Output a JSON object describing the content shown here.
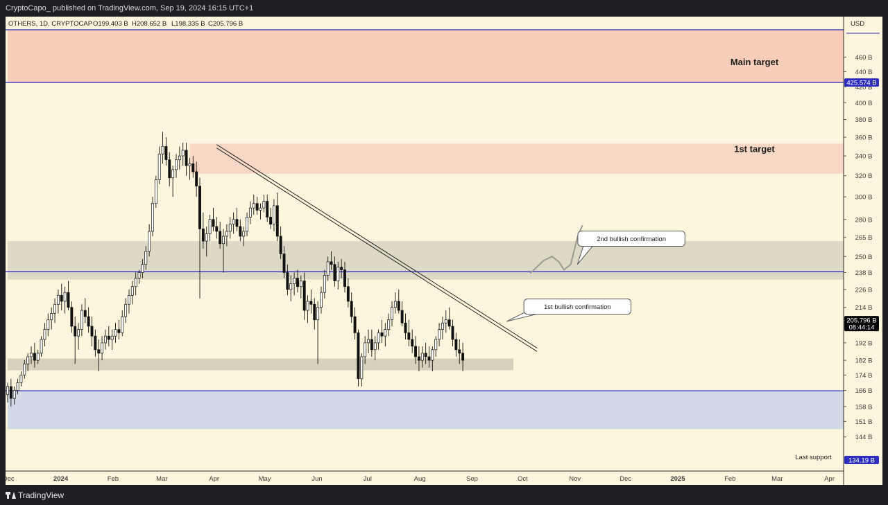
{
  "header": {
    "published": "CryptoCapo_ published on TradingView.com, Sep 19, 2024 16:15 UTC+1"
  },
  "footer": {
    "brand": "TradingView"
  },
  "chart_data": {
    "type": "candlestick",
    "symbol_line": "OTHERS, 1D, CRYPTOCAP",
    "ohlc": {
      "open": "O199.403 B",
      "high": "H208.652 B",
      "low": "L198.335 B",
      "close": "C205.796 B"
    },
    "currency": "USD",
    "scale": "log",
    "ylim": [
      130,
      500
    ],
    "price_ticks": [
      {
        "v": 460,
        "label": "460 B"
      },
      {
        "v": 440,
        "label": "440 B"
      },
      {
        "v": 420,
        "label": "420 B"
      },
      {
        "v": 400,
        "label": "400 B"
      },
      {
        "v": 380,
        "label": "380 B"
      },
      {
        "v": 360,
        "label": "360 B"
      },
      {
        "v": 340,
        "label": "340 B"
      },
      {
        "v": 320,
        "label": "320 B"
      },
      {
        "v": 300,
        "label": "300 B"
      },
      {
        "v": 280,
        "label": "280 B"
      },
      {
        "v": 265,
        "label": "265 B"
      },
      {
        "v": 250,
        "label": "250 B"
      },
      {
        "v": 238,
        "label": "238 B"
      },
      {
        "v": 226,
        "label": "226 B"
      },
      {
        "v": 214,
        "label": "214 B"
      },
      {
        "v": 192,
        "label": "192 B"
      },
      {
        "v": 182,
        "label": "182 B"
      },
      {
        "v": 174,
        "label": "174 B"
      },
      {
        "v": 166,
        "label": "166 B"
      },
      {
        "v": 158,
        "label": "158 B"
      },
      {
        "v": 151,
        "label": "151 B"
      },
      {
        "v": 144,
        "label": "144 B"
      }
    ],
    "badges": [
      {
        "v": 425.574,
        "label": "425.574 B",
        "bg": "#2d2dbf",
        "fg": "#ffffff"
      },
      {
        "v": 205.796,
        "label": "205.796 B",
        "sub": "08:44:14",
        "bg": "#000000",
        "fg": "#ffffff"
      },
      {
        "v": 134.19,
        "label": "134.19 B",
        "bg": "#2d2dbf",
        "fg": "#ffffff"
      }
    ],
    "time_labels": [
      {
        "t": 0.5,
        "label": "Dec"
      },
      {
        "t": 31.5,
        "label": "2024"
      },
      {
        "t": 62.5,
        "label": "Feb"
      },
      {
        "t": 91.5,
        "label": "Mar"
      },
      {
        "t": 122.5,
        "label": "Apr"
      },
      {
        "t": 152.5,
        "label": "May"
      },
      {
        "t": 183.5,
        "label": "Jun"
      },
      {
        "t": 213.5,
        "label": "Jul"
      },
      {
        "t": 244.5,
        "label": "Aug"
      },
      {
        "t": 275.5,
        "label": "Sep"
      },
      {
        "t": 305.5,
        "label": "Oct"
      },
      {
        "t": 336.5,
        "label": "Nov"
      },
      {
        "t": 366.5,
        "label": "Dec"
      },
      {
        "t": 397.5,
        "label": "2025"
      },
      {
        "t": 428.5,
        "label": "Feb"
      },
      {
        "t": 456.5,
        "label": "Mar"
      },
      {
        "t": 487.5,
        "label": "Apr"
      }
    ],
    "zones": [
      {
        "name": "main-target-zone",
        "t0": 0,
        "t1": 497,
        "p0": 425.574,
        "p1": 500,
        "color": "#f8cdb9"
      },
      {
        "name": "first-target-zone",
        "t0": 108,
        "t1": 497,
        "p0": 322,
        "p1": 353,
        "color": "#f8d7c4"
      },
      {
        "name": "bullish-confirmation-zone",
        "t0": 0,
        "t1": 497,
        "p0": 233,
        "p1": 262,
        "color": "#ddd9c6"
      },
      {
        "name": "support-zone",
        "t0": 0,
        "t1": 300,
        "p0": 176.5,
        "p1": 183,
        "color": "#d6d0bc"
      },
      {
        "name": "last-support-zone",
        "t0": 0,
        "t1": 497,
        "p0": 147.5,
        "p1": 165.5,
        "color": "#d2d9e6"
      }
    ],
    "levels": [
      {
        "p": 425.574,
        "color": "#2d2dbf"
      },
      {
        "p": 238.6,
        "color": "#2d2dbf"
      },
      {
        "p": 165.8,
        "color": "#2d2dbf"
      },
      {
        "p": 500,
        "color": "#2d2dbf"
      }
    ],
    "trendline": {
      "t0": 124,
      "p0": 352,
      "t1": 314,
      "p1": 189
    },
    "annotations": [
      {
        "text": "Main target",
        "t": 443,
        "p": 449
      },
      {
        "text": "1st target",
        "t": 443,
        "p": 344
      },
      {
        "text": "Last support",
        "t": 478,
        "p": 134.5
      }
    ],
    "callouts": [
      {
        "text": "2nd bullish confirmation",
        "t": 370,
        "p": 264,
        "tail_t": 338,
        "tail_p": 244
      },
      {
        "text": "1st bullish confirmation",
        "t": 338,
        "p": 214.5,
        "tail_t": 296,
        "tail_p": 205
      }
    ],
    "projection": [
      [
        310,
        237.4
      ],
      [
        318,
        247
      ],
      [
        323,
        250
      ],
      [
        327,
        246
      ],
      [
        330,
        240
      ],
      [
        334,
        244
      ],
      [
        338,
        265
      ],
      [
        341,
        275
      ]
    ],
    "candles": [
      [
        0,
        164,
        170,
        160,
        168
      ],
      [
        2,
        168,
        172,
        158,
        162
      ],
      [
        4,
        162,
        168,
        159,
        166
      ],
      [
        6,
        166,
        172,
        164,
        170
      ],
      [
        8,
        170,
        176,
        168,
        174
      ],
      [
        10,
        174,
        182,
        172,
        180
      ],
      [
        12,
        180,
        186,
        176,
        184
      ],
      [
        14,
        184,
        190,
        180,
        186
      ],
      [
        16,
        186,
        192,
        178,
        182
      ],
      [
        18,
        182,
        188,
        180,
        186
      ],
      [
        20,
        186,
        196,
        184,
        194
      ],
      [
        22,
        194,
        204,
        190,
        200
      ],
      [
        24,
        200,
        210,
        196,
        206
      ],
      [
        26,
        206,
        214,
        200,
        210
      ],
      [
        28,
        210,
        220,
        204,
        216
      ],
      [
        30,
        216,
        226,
        210,
        222
      ],
      [
        32,
        222,
        230,
        212,
        218
      ],
      [
        34,
        218,
        228,
        210,
        224
      ],
      [
        36,
        224,
        232,
        212,
        214
      ],
      [
        38,
        214,
        218,
        198,
        202
      ],
      [
        40,
        202,
        208,
        180,
        196
      ],
      [
        42,
        196,
        204,
        188,
        200
      ],
      [
        44,
        200,
        216,
        196,
        212
      ],
      [
        46,
        212,
        220,
        204,
        208
      ],
      [
        48,
        208,
        214,
        198,
        202
      ],
      [
        50,
        202,
        208,
        190,
        196
      ],
      [
        52,
        196,
        200,
        184,
        188
      ],
      [
        54,
        188,
        194,
        176,
        186
      ],
      [
        56,
        186,
        196,
        182,
        192
      ],
      [
        58,
        192,
        200,
        188,
        196
      ],
      [
        60,
        196,
        202,
        190,
        194
      ],
      [
        62,
        194,
        200,
        188,
        196
      ],
      [
        64,
        196,
        204,
        192,
        200
      ],
      [
        66,
        200,
        206,
        194,
        198
      ],
      [
        68,
        198,
        212,
        196,
        208
      ],
      [
        70,
        208,
        220,
        204,
        216
      ],
      [
        72,
        216,
        226,
        210,
        222
      ],
      [
        74,
        222,
        232,
        216,
        228
      ],
      [
        76,
        228,
        238,
        222,
        234
      ],
      [
        78,
        234,
        240,
        230,
        238
      ],
      [
        80,
        238,
        248,
        234,
        244
      ],
      [
        82,
        244,
        258,
        240,
        254
      ],
      [
        84,
        254,
        276,
        250,
        270
      ],
      [
        86,
        270,
        300,
        266,
        294
      ],
      [
        88,
        294,
        320,
        290,
        316
      ],
      [
        90,
        316,
        350,
        312,
        342
      ],
      [
        92,
        342,
        366,
        332,
        350
      ],
      [
        94,
        350,
        360,
        330,
        336
      ],
      [
        96,
        336,
        344,
        310,
        318
      ],
      [
        98,
        318,
        330,
        300,
        326
      ],
      [
        100,
        326,
        342,
        318,
        336
      ],
      [
        102,
        336,
        350,
        326,
        340
      ],
      [
        104,
        340,
        354,
        330,
        346
      ],
      [
        106,
        346,
        354,
        320,
        330
      ],
      [
        108,
        330,
        338,
        316,
        332
      ],
      [
        110,
        332,
        340,
        318,
        324
      ],
      [
        112,
        324,
        334,
        300,
        310
      ],
      [
        114,
        310,
        318,
        220,
        272
      ],
      [
        116,
        272,
        286,
        256,
        262
      ],
      [
        118,
        262,
        274,
        250,
        268
      ],
      [
        120,
        268,
        284,
        262,
        280
      ],
      [
        122,
        280,
        290,
        270,
        274
      ],
      [
        124,
        274,
        282,
        264,
        270
      ],
      [
        126,
        270,
        278,
        256,
        260
      ],
      [
        128,
        260,
        272,
        238,
        266
      ],
      [
        130,
        266,
        276,
        258,
        270
      ],
      [
        132,
        270,
        282,
        264,
        276
      ],
      [
        134,
        276,
        286,
        268,
        280
      ],
      [
        136,
        280,
        290,
        270,
        274
      ],
      [
        138,
        274,
        280,
        262,
        266
      ],
      [
        140,
        266,
        274,
        258,
        270
      ],
      [
        142,
        270,
        286,
        266,
        282
      ],
      [
        144,
        282,
        296,
        276,
        290
      ],
      [
        146,
        290,
        302,
        284,
        294
      ],
      [
        148,
        294,
        300,
        284,
        288
      ],
      [
        150,
        288,
        294,
        280,
        290
      ],
      [
        152,
        290,
        302,
        286,
        296
      ],
      [
        154,
        296,
        302,
        278,
        282
      ],
      [
        156,
        282,
        290,
        272,
        276
      ],
      [
        158,
        276,
        298,
        270,
        292
      ],
      [
        160,
        292,
        304,
        262,
        266
      ],
      [
        162,
        266,
        274,
        248,
        252
      ],
      [
        164,
        252,
        258,
        234,
        238
      ],
      [
        166,
        238,
        244,
        222,
        226
      ],
      [
        168,
        226,
        236,
        218,
        230
      ],
      [
        170,
        230,
        238,
        222,
        234
      ],
      [
        172,
        234,
        240,
        224,
        228
      ],
      [
        174,
        228,
        236,
        220,
        232
      ],
      [
        176,
        232,
        238,
        206,
        212
      ],
      [
        178,
        212,
        222,
        204,
        218
      ],
      [
        180,
        218,
        226,
        210,
        216
      ],
      [
        182,
        216,
        220,
        200,
        206
      ],
      [
        184,
        206,
        218,
        180,
        214
      ],
      [
        186,
        214,
        228,
        210,
        224
      ],
      [
        188,
        224,
        240,
        220,
        236
      ],
      [
        190,
        236,
        250,
        232,
        246
      ],
      [
        192,
        246,
        254,
        240,
        244
      ],
      [
        194,
        244,
        250,
        228,
        232
      ],
      [
        196,
        232,
        246,
        226,
        242
      ],
      [
        198,
        242,
        248,
        234,
        240
      ],
      [
        200,
        240,
        246,
        224,
        228
      ],
      [
        202,
        228,
        234,
        214,
        218
      ],
      [
        204,
        218,
        224,
        204,
        208
      ],
      [
        206,
        208,
        214,
        194,
        198
      ],
      [
        208,
        198,
        200,
        168,
        172
      ],
      [
        210,
        172,
        186,
        168,
        184
      ],
      [
        212,
        184,
        196,
        180,
        192
      ],
      [
        214,
        192,
        200,
        186,
        194
      ],
      [
        216,
        194,
        200,
        184,
        188
      ],
      [
        218,
        188,
        196,
        182,
        192
      ],
      [
        220,
        192,
        200,
        188,
        198
      ],
      [
        222,
        198,
        206,
        192,
        196
      ],
      [
        224,
        196,
        204,
        190,
        200
      ],
      [
        226,
        200,
        210,
        196,
        206
      ],
      [
        228,
        206,
        218,
        202,
        214
      ],
      [
        230,
        214,
        224,
        210,
        218
      ],
      [
        232,
        218,
        226,
        210,
        212
      ],
      [
        234,
        212,
        218,
        202,
        204
      ],
      [
        236,
        204,
        210,
        194,
        198
      ],
      [
        238,
        198,
        206,
        190,
        194
      ],
      [
        240,
        194,
        200,
        186,
        190
      ],
      [
        242,
        190,
        196,
        180,
        184
      ],
      [
        244,
        184,
        190,
        176,
        182
      ],
      [
        246,
        182,
        190,
        178,
        186
      ],
      [
        248,
        186,
        192,
        180,
        184
      ],
      [
        250,
        184,
        190,
        178,
        182
      ],
      [
        252,
        182,
        190,
        176,
        188
      ],
      [
        254,
        188,
        196,
        184,
        194
      ],
      [
        256,
        194,
        204,
        190,
        200
      ],
      [
        258,
        200,
        208,
        194,
        204
      ],
      [
        260,
        204,
        212,
        198,
        206
      ],
      [
        262,
        206,
        214,
        200,
        202
      ],
      [
        264,
        202,
        206,
        190,
        194
      ],
      [
        266,
        194,
        198,
        184,
        188
      ],
      [
        268,
        188,
        194,
        180,
        186
      ],
      [
        270,
        186,
        192,
        176,
        182
      ]
    ]
  }
}
